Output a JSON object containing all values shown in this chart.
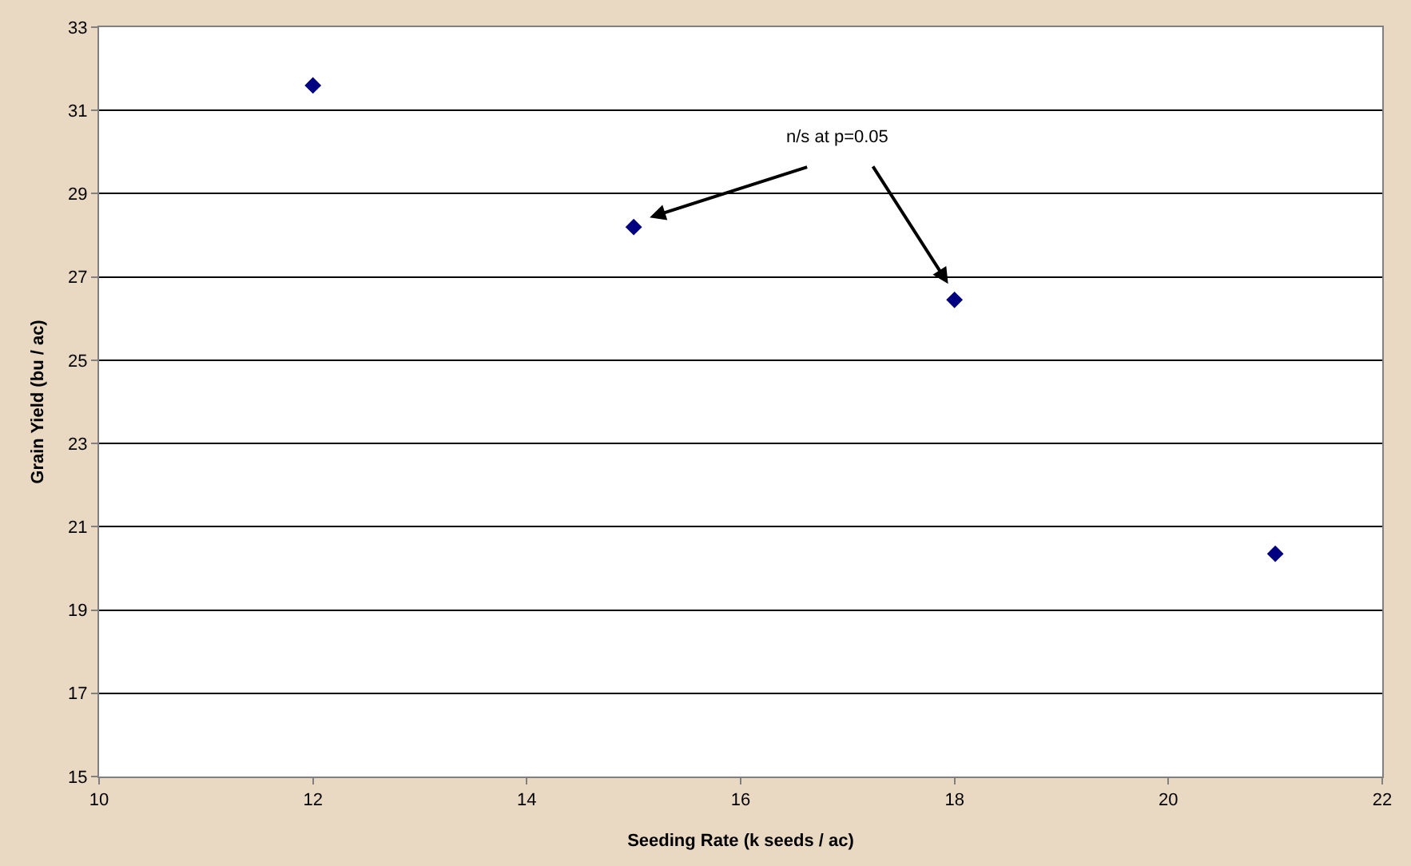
{
  "chart_data": {
    "type": "scatter",
    "xlabel": "Seeding Rate (k seeds / ac)",
    "ylabel": "Grain Yield (bu / ac)",
    "x": [
      12,
      15,
      18,
      21
    ],
    "series": [
      {
        "color": "#000080",
        "values": [
          31.6,
          28.2,
          26.45,
          20.35
        ]
      }
    ],
    "xlim": [
      10,
      22
    ],
    "xticks": [
      10,
      12,
      14,
      16,
      18,
      20,
      22
    ],
    "ylim": [
      15,
      33
    ],
    "yticks": [
      15,
      17,
      19,
      21,
      23,
      25,
      27,
      29,
      31,
      33
    ],
    "grid": "y",
    "marker": "diamond",
    "annotations": [
      "n/s at p=0.05"
    ]
  }
}
